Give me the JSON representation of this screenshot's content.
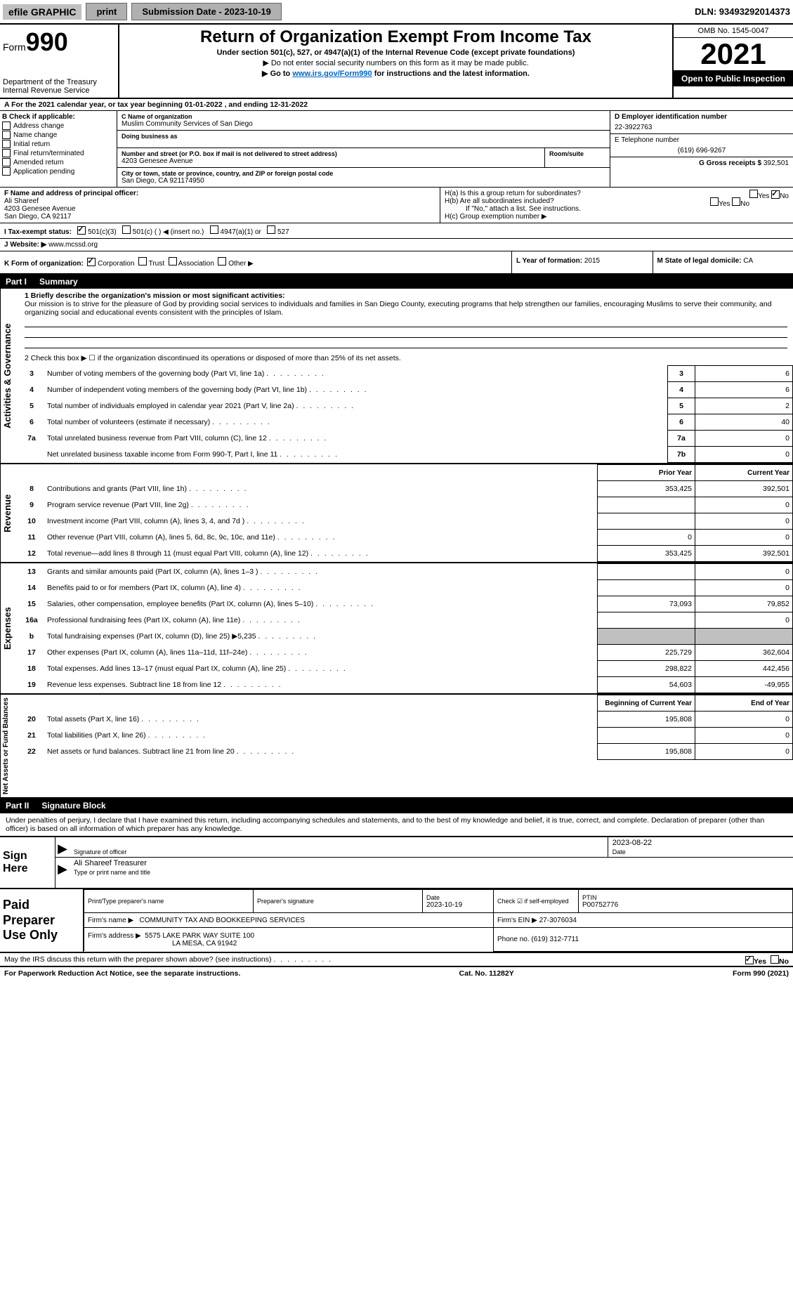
{
  "topbar": {
    "efile": "efile GRAPHIC",
    "print": "print",
    "submission": "Submission Date - 2023-10-19",
    "dln": "DLN: 93493292014373"
  },
  "header": {
    "form_prefix": "Form",
    "form_number": "990",
    "dept1": "Department of the Treasury",
    "dept2": "Internal Revenue Service",
    "title": "Return of Organization Exempt From Income Tax",
    "sub1": "Under section 501(c), 527, or 4947(a)(1) of the Internal Revenue Code (except private foundations)",
    "sub2": "▶ Do not enter social security numbers on this form as it may be made public.",
    "sub3_pre": "▶ Go to ",
    "sub3_link": "www.irs.gov/Form990",
    "sub3_post": " for instructions and the latest information.",
    "omb": "OMB No. 1545-0047",
    "year": "2021",
    "open": "Open to Public Inspection"
  },
  "line_a": "A For the 2021 calendar year, or tax year beginning 01-01-2022    , and ending 12-31-2022",
  "box_b": {
    "label": "B Check if applicable:",
    "items": [
      "Address change",
      "Name change",
      "Initial return",
      "Final return/terminated",
      "Amended return",
      "Application pending"
    ]
  },
  "box_c": {
    "name_lbl": "C Name of organization",
    "name": "Muslim Community Services of San Diego",
    "dba_lbl": "Doing business as",
    "dba": "",
    "addr_lbl": "Number and street (or P.O. box if mail is not delivered to street address)",
    "room_lbl": "Room/suite",
    "addr": "4203 Genesee Avenue",
    "city_lbl": "City or town, state or province, country, and ZIP or foreign postal code",
    "city": "San Diego, CA  921174950"
  },
  "box_d": {
    "lbl": "D Employer identification number",
    "val": "22-3922763"
  },
  "box_e": {
    "lbl": "E Telephone number",
    "val": "(619) 696-9267"
  },
  "box_g": {
    "lbl": "G Gross receipts $",
    "val": "392,501"
  },
  "box_f": {
    "lbl": "F  Name and address of principal officer:",
    "name": "Ali Shareef",
    "addr1": "4203 Genesee Avenue",
    "addr2": "San Diego, CA  92117"
  },
  "box_h": {
    "a_lbl": "H(a)  Is this a group return for subordinates?",
    "a_yes": "Yes",
    "a_no": "No",
    "b_lbl": "H(b)  Are all subordinates included?",
    "b_note": "If \"No,\" attach a list. See instructions.",
    "c_lbl": "H(c)  Group exemption number ▶"
  },
  "box_i": {
    "lbl": "I   Tax-exempt status:",
    "o1": "501(c)(3)",
    "o2": "501(c) (  ) ◀ (insert no.)",
    "o3": "4947(a)(1) or",
    "o4": "527"
  },
  "box_j": {
    "lbl": "J   Website: ▶ ",
    "val": "www.mcssd.org"
  },
  "box_k": {
    "lbl": "K Form of organization:",
    "o1": "Corporation",
    "o2": "Trust",
    "o3": "Association",
    "o4": "Other ▶"
  },
  "box_l": {
    "lbl": "L Year of formation:",
    "val": "2015"
  },
  "box_m": {
    "lbl": "M State of legal domicile:",
    "val": "CA"
  },
  "part1": {
    "num": "Part I",
    "title": "Summary"
  },
  "mission": {
    "lbl": "1  Briefly describe the organization's mission or most significant activities:",
    "text": "Our mission is to strive for the pleasure of God by providing social services to individuals and families in San Diego County, executing programs that help strengthen our families, encouraging Muslims to serve their community, and organizing social and educational events consistent with the principles of Islam."
  },
  "line2": "2   Check this box ▶ ☐  if the organization discontinued its operations or disposed of more than 25% of its net assets.",
  "rows_ag": [
    {
      "n": "3",
      "d": "Number of voting members of the governing body (Part VI, line 1a)",
      "b": "3",
      "v": "6"
    },
    {
      "n": "4",
      "d": "Number of independent voting members of the governing body (Part VI, line 1b)",
      "b": "4",
      "v": "6"
    },
    {
      "n": "5",
      "d": "Total number of individuals employed in calendar year 2021 (Part V, line 2a)",
      "b": "5",
      "v": "2"
    },
    {
      "n": "6",
      "d": "Total number of volunteers (estimate if necessary)",
      "b": "6",
      "v": "40"
    },
    {
      "n": "7a",
      "d": "Total unrelated business revenue from Part VIII, column (C), line 12",
      "b": "7a",
      "v": "0"
    },
    {
      "n": "",
      "d": "Net unrelated business taxable income from Form 990-T, Part I, line 11",
      "b": "7b",
      "v": "0"
    }
  ],
  "col_headers": {
    "prior": "Prior Year",
    "current": "Current Year",
    "beg": "Beginning of Current Year",
    "end": "End of Year"
  },
  "vert": {
    "ag": "Activities & Governance",
    "rev": "Revenue",
    "exp": "Expenses",
    "net": "Net Assets or Fund Balances"
  },
  "rows_rev": [
    {
      "n": "8",
      "d": "Contributions and grants (Part VIII, line 1h)",
      "p": "353,425",
      "c": "392,501"
    },
    {
      "n": "9",
      "d": "Program service revenue (Part VIII, line 2g)",
      "p": "",
      "c": "0"
    },
    {
      "n": "10",
      "d": "Investment income (Part VIII, column (A), lines 3, 4, and 7d )",
      "p": "",
      "c": "0"
    },
    {
      "n": "11",
      "d": "Other revenue (Part VIII, column (A), lines 5, 6d, 8c, 9c, 10c, and 11e)",
      "p": "0",
      "c": "0"
    },
    {
      "n": "12",
      "d": "Total revenue—add lines 8 through 11 (must equal Part VIII, column (A), line 12)",
      "p": "353,425",
      "c": "392,501"
    }
  ],
  "rows_exp": [
    {
      "n": "13",
      "d": "Grants and similar amounts paid (Part IX, column (A), lines 1–3 )",
      "p": "",
      "c": "0"
    },
    {
      "n": "14",
      "d": "Benefits paid to or for members (Part IX, column (A), line 4)",
      "p": "",
      "c": "0"
    },
    {
      "n": "15",
      "d": "Salaries, other compensation, employee benefits (Part IX, column (A), lines 5–10)",
      "p": "73,093",
      "c": "79,852"
    },
    {
      "n": "16a",
      "d": "Professional fundraising fees (Part IX, column (A), line 11e)",
      "p": "",
      "c": "0"
    },
    {
      "n": "b",
      "d": "Total fundraising expenses (Part IX, column (D), line 25) ▶5,235",
      "p": "gray",
      "c": "gray"
    },
    {
      "n": "17",
      "d": "Other expenses (Part IX, column (A), lines 11a–11d, 11f–24e)",
      "p": "225,729",
      "c": "362,604"
    },
    {
      "n": "18",
      "d": "Total expenses. Add lines 13–17 (must equal Part IX, column (A), line 25)",
      "p": "298,822",
      "c": "442,456"
    },
    {
      "n": "19",
      "d": "Revenue less expenses. Subtract line 18 from line 12",
      "p": "54,603",
      "c": "-49,955"
    }
  ],
  "rows_net": [
    {
      "n": "20",
      "d": "Total assets (Part X, line 16)",
      "p": "195,808",
      "c": "0"
    },
    {
      "n": "21",
      "d": "Total liabilities (Part X, line 26)",
      "p": "",
      "c": "0"
    },
    {
      "n": "22",
      "d": "Net assets or fund balances. Subtract line 21 from line 20",
      "p": "195,808",
      "c": "0"
    }
  ],
  "part2": {
    "num": "Part II",
    "title": "Signature Block"
  },
  "sig_decl": "Under penalties of perjury, I declare that I have examined this return, including accompanying schedules and statements, and to the best of my knowledge and belief, it is true, correct, and complete. Declaration of preparer (other than officer) is based on all information of which preparer has any knowledge.",
  "sign": {
    "label": "Sign Here",
    "date": "2023-08-22",
    "sig_of": "Signature of officer",
    "date_lbl": "Date",
    "name": "Ali Shareef  Treasurer",
    "name_lbl": "Type or print name and title"
  },
  "paid": {
    "label": "Paid Preparer Use Only",
    "h1": "Print/Type preparer's name",
    "h2": "Preparer's signature",
    "h3": "Date",
    "h3v": "2023-10-19",
    "h4": "Check ☑ if self-employed",
    "h5": "PTIN",
    "h5v": "P00752776",
    "firm_lbl": "Firm's name    ▶",
    "firm": "COMMUNITY TAX AND BOOKKEEPING SERVICES",
    "ein_lbl": "Firm's EIN ▶",
    "ein": "27-3076034",
    "addr_lbl": "Firm's address ▶",
    "addr1": "5575 LAKE PARK WAY SUITE 100",
    "addr2": "LA MESA, CA  91942",
    "phone_lbl": "Phone no.",
    "phone": "(619) 312-7711"
  },
  "discuss": "May the IRS discuss this return with the preparer shown above? (see instructions)",
  "discuss_yes": "Yes",
  "discuss_no": "No",
  "footer": {
    "left": "For Paperwork Reduction Act Notice, see the separate instructions.",
    "mid": "Cat. No. 11282Y",
    "right_pre": "Form ",
    "right_form": "990",
    "right_post": " (2021)"
  }
}
